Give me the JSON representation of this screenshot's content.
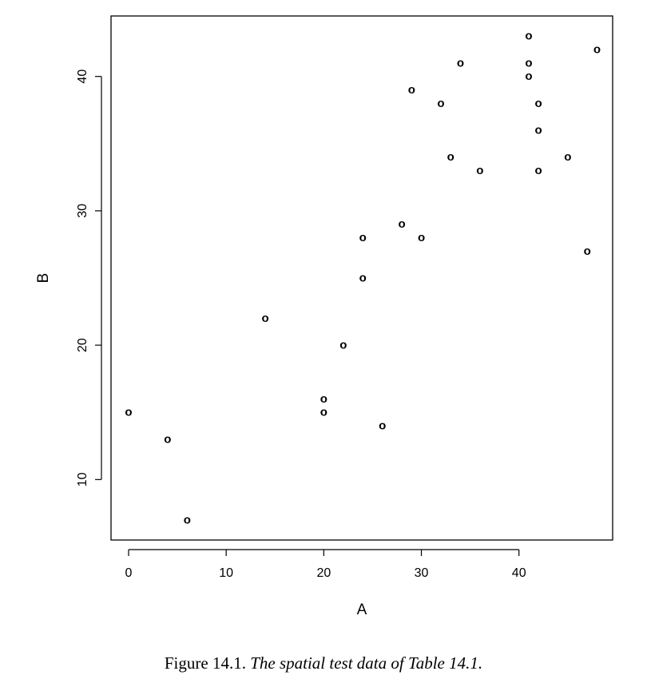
{
  "chart_data": {
    "type": "scatter",
    "marker": "o",
    "xlabel": "A",
    "ylabel": "B",
    "xlim": [
      -1.8,
      49.6
    ],
    "ylim": [
      5.5,
      44.5
    ],
    "xticks": [
      0,
      10,
      20,
      30,
      40
    ],
    "yticks": [
      10,
      20,
      30,
      40
    ],
    "grid": false,
    "points": [
      {
        "x": 0,
        "y": 15
      },
      {
        "x": 4,
        "y": 13
      },
      {
        "x": 6,
        "y": 7
      },
      {
        "x": 14,
        "y": 22
      },
      {
        "x": 20,
        "y": 16
      },
      {
        "x": 20,
        "y": 15
      },
      {
        "x": 22,
        "y": 20
      },
      {
        "x": 24,
        "y": 28
      },
      {
        "x": 24,
        "y": 25
      },
      {
        "x": 26,
        "y": 14
      },
      {
        "x": 28,
        "y": 29
      },
      {
        "x": 29,
        "y": 39
      },
      {
        "x": 30,
        "y": 28
      },
      {
        "x": 32,
        "y": 38
      },
      {
        "x": 33,
        "y": 34
      },
      {
        "x": 34,
        "y": 41
      },
      {
        "x": 36,
        "y": 33
      },
      {
        "x": 41,
        "y": 43
      },
      {
        "x": 41,
        "y": 41
      },
      {
        "x": 41,
        "y": 40
      },
      {
        "x": 42,
        "y": 38
      },
      {
        "x": 42,
        "y": 36
      },
      {
        "x": 42,
        "y": 33
      },
      {
        "x": 45,
        "y": 34
      },
      {
        "x": 47,
        "y": 27
      },
      {
        "x": 48,
        "y": 42
      }
    ]
  },
  "caption": {
    "prefix": "Figure 14.1.",
    "text": "The spatial test data of Table 14.1."
  }
}
